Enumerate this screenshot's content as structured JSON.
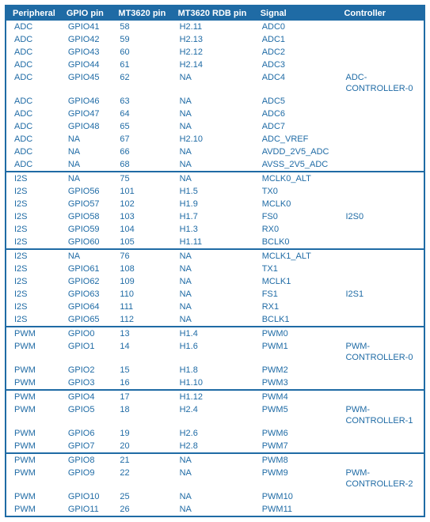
{
  "colors": {
    "brand": "#1f6ba5",
    "text": "#1f6ba5",
    "header_text": "#ffffff",
    "background": "#ffffff"
  },
  "font": {
    "family": "Segoe UI",
    "size_pt": 8
  },
  "headers": {
    "peripheral": "Peripheral",
    "gpio": "GPIO pin",
    "pin": "MT3620 pin",
    "rdb": "MT3620 RDB pin",
    "signal": "Signal",
    "controller": "Controller"
  },
  "groups": [
    {
      "controller": "ADC-CONTROLLER-0",
      "controller_row_index": 4,
      "rows": [
        {
          "p": "ADC",
          "g": "GPIO41",
          "pin": "58",
          "rdb": "H2.11",
          "s": "ADC0"
        },
        {
          "p": "ADC",
          "g": "GPIO42",
          "pin": "59",
          "rdb": "H2.13",
          "s": "ADC1"
        },
        {
          "p": "ADC",
          "g": "GPIO43",
          "pin": "60",
          "rdb": "H2.12",
          "s": "ADC2"
        },
        {
          "p": "ADC",
          "g": "GPIO44",
          "pin": "61",
          "rdb": "H2.14",
          "s": "ADC3"
        },
        {
          "p": "ADC",
          "g": "GPIO45",
          "pin": "62",
          "rdb": "NA",
          "s": "ADC4"
        },
        {
          "p": "ADC",
          "g": "GPIO46",
          "pin": "63",
          "rdb": "NA",
          "s": "ADC5"
        },
        {
          "p": "ADC",
          "g": "GPIO47",
          "pin": "64",
          "rdb": "NA",
          "s": "ADC6"
        },
        {
          "p": "ADC",
          "g": "GPIO48",
          "pin": "65",
          "rdb": "NA",
          "s": "ADC7"
        },
        {
          "p": "ADC",
          "g": "NA",
          "pin": "67",
          "rdb": "H2.10",
          "s": "ADC_VREF"
        },
        {
          "p": "ADC",
          "g": "NA",
          "pin": "66",
          "rdb": "NA",
          "s": "AVDD_2V5_ADC"
        },
        {
          "p": "ADC",
          "g": "NA",
          "pin": "68",
          "rdb": "NA",
          "s": "AVSS_2V5_ADC"
        }
      ]
    },
    {
      "controller": "I2S0",
      "controller_row_index": 3,
      "rows": [
        {
          "p": "I2S",
          "g": "NA",
          "pin": "75",
          "rdb": "NA",
          "s": "MCLK0_ALT"
        },
        {
          "p": "I2S",
          "g": "GPIO56",
          "pin": "101",
          "rdb": "H1.5",
          "s": "TX0"
        },
        {
          "p": "I2S",
          "g": "GPIO57",
          "pin": "102",
          "rdb": "H1.9",
          "s": "MCLK0"
        },
        {
          "p": "I2S",
          "g": "GPIO58",
          "pin": "103",
          "rdb": "H1.7",
          "s": "FS0"
        },
        {
          "p": "I2S",
          "g": "GPIO59",
          "pin": "104",
          "rdb": "H1.3",
          "s": "RX0"
        },
        {
          "p": "I2S",
          "g": "GPIO60",
          "pin": "105",
          "rdb": "H1.11",
          "s": "BCLK0"
        }
      ]
    },
    {
      "controller": "I2S1",
      "controller_row_index": 3,
      "rows": [
        {
          "p": "I2S",
          "g": "NA",
          "pin": "76",
          "rdb": "NA",
          "s": "MCLK1_ALT"
        },
        {
          "p": "I2S",
          "g": "GPIO61",
          "pin": "108",
          "rdb": "NA",
          "s": "TX1"
        },
        {
          "p": "I2S",
          "g": "GPIO62",
          "pin": "109",
          "rdb": "NA",
          "s": "MCLK1"
        },
        {
          "p": "I2S",
          "g": "GPIO63",
          "pin": "110",
          "rdb": "NA",
          "s": "FS1"
        },
        {
          "p": "I2S",
          "g": "GPIO64",
          "pin": "111",
          "rdb": "NA",
          "s": "RX1"
        },
        {
          "p": "I2S",
          "g": "GPIO65",
          "pin": "112",
          "rdb": "NA",
          "s": "BCLK1"
        }
      ]
    },
    {
      "controller": "PWM-CONTROLLER-0",
      "controller_row_index": 1,
      "rows": [
        {
          "p": "PWM",
          "g": "GPIO0",
          "pin": "13",
          "rdb": "H1.4",
          "s": "PWM0"
        },
        {
          "p": "PWM",
          "g": "GPIO1",
          "pin": "14",
          "rdb": "H1.6",
          "s": "PWM1"
        },
        {
          "p": "PWM",
          "g": "GPIO2",
          "pin": "15",
          "rdb": "H1.8",
          "s": "PWM2"
        },
        {
          "p": "PWM",
          "g": "GPIO3",
          "pin": "16",
          "rdb": "H1.10",
          "s": "PWM3"
        }
      ]
    },
    {
      "controller": "PWM-CONTROLLER-1",
      "controller_row_index": 1,
      "rows": [
        {
          "p": "PWM",
          "g": "GPIO4",
          "pin": "17",
          "rdb": "H1.12",
          "s": "PWM4"
        },
        {
          "p": "PWM",
          "g": "GPIO5",
          "pin": "18",
          "rdb": "H2.4",
          "s": "PWM5"
        },
        {
          "p": "PWM",
          "g": "GPIO6",
          "pin": "19",
          "rdb": "H2.6",
          "s": "PWM6"
        },
        {
          "p": "PWM",
          "g": "GPIO7",
          "pin": "20",
          "rdb": "H2.8",
          "s": "PWM7"
        }
      ]
    },
    {
      "controller": "PWM-CONTROLLER-2",
      "controller_row_index": 1,
      "rows": [
        {
          "p": "PWM",
          "g": "GPIO8",
          "pin": "21",
          "rdb": "NA",
          "s": "PWM8"
        },
        {
          "p": "PWM",
          "g": "GPIO9",
          "pin": "22",
          "rdb": "NA",
          "s": "PWM9"
        },
        {
          "p": "PWM",
          "g": "GPIO10",
          "pin": "25",
          "rdb": "NA",
          "s": "PWM10"
        },
        {
          "p": "PWM",
          "g": "GPIO11",
          "pin": "26",
          "rdb": "NA",
          "s": "PWM11"
        }
      ]
    }
  ]
}
